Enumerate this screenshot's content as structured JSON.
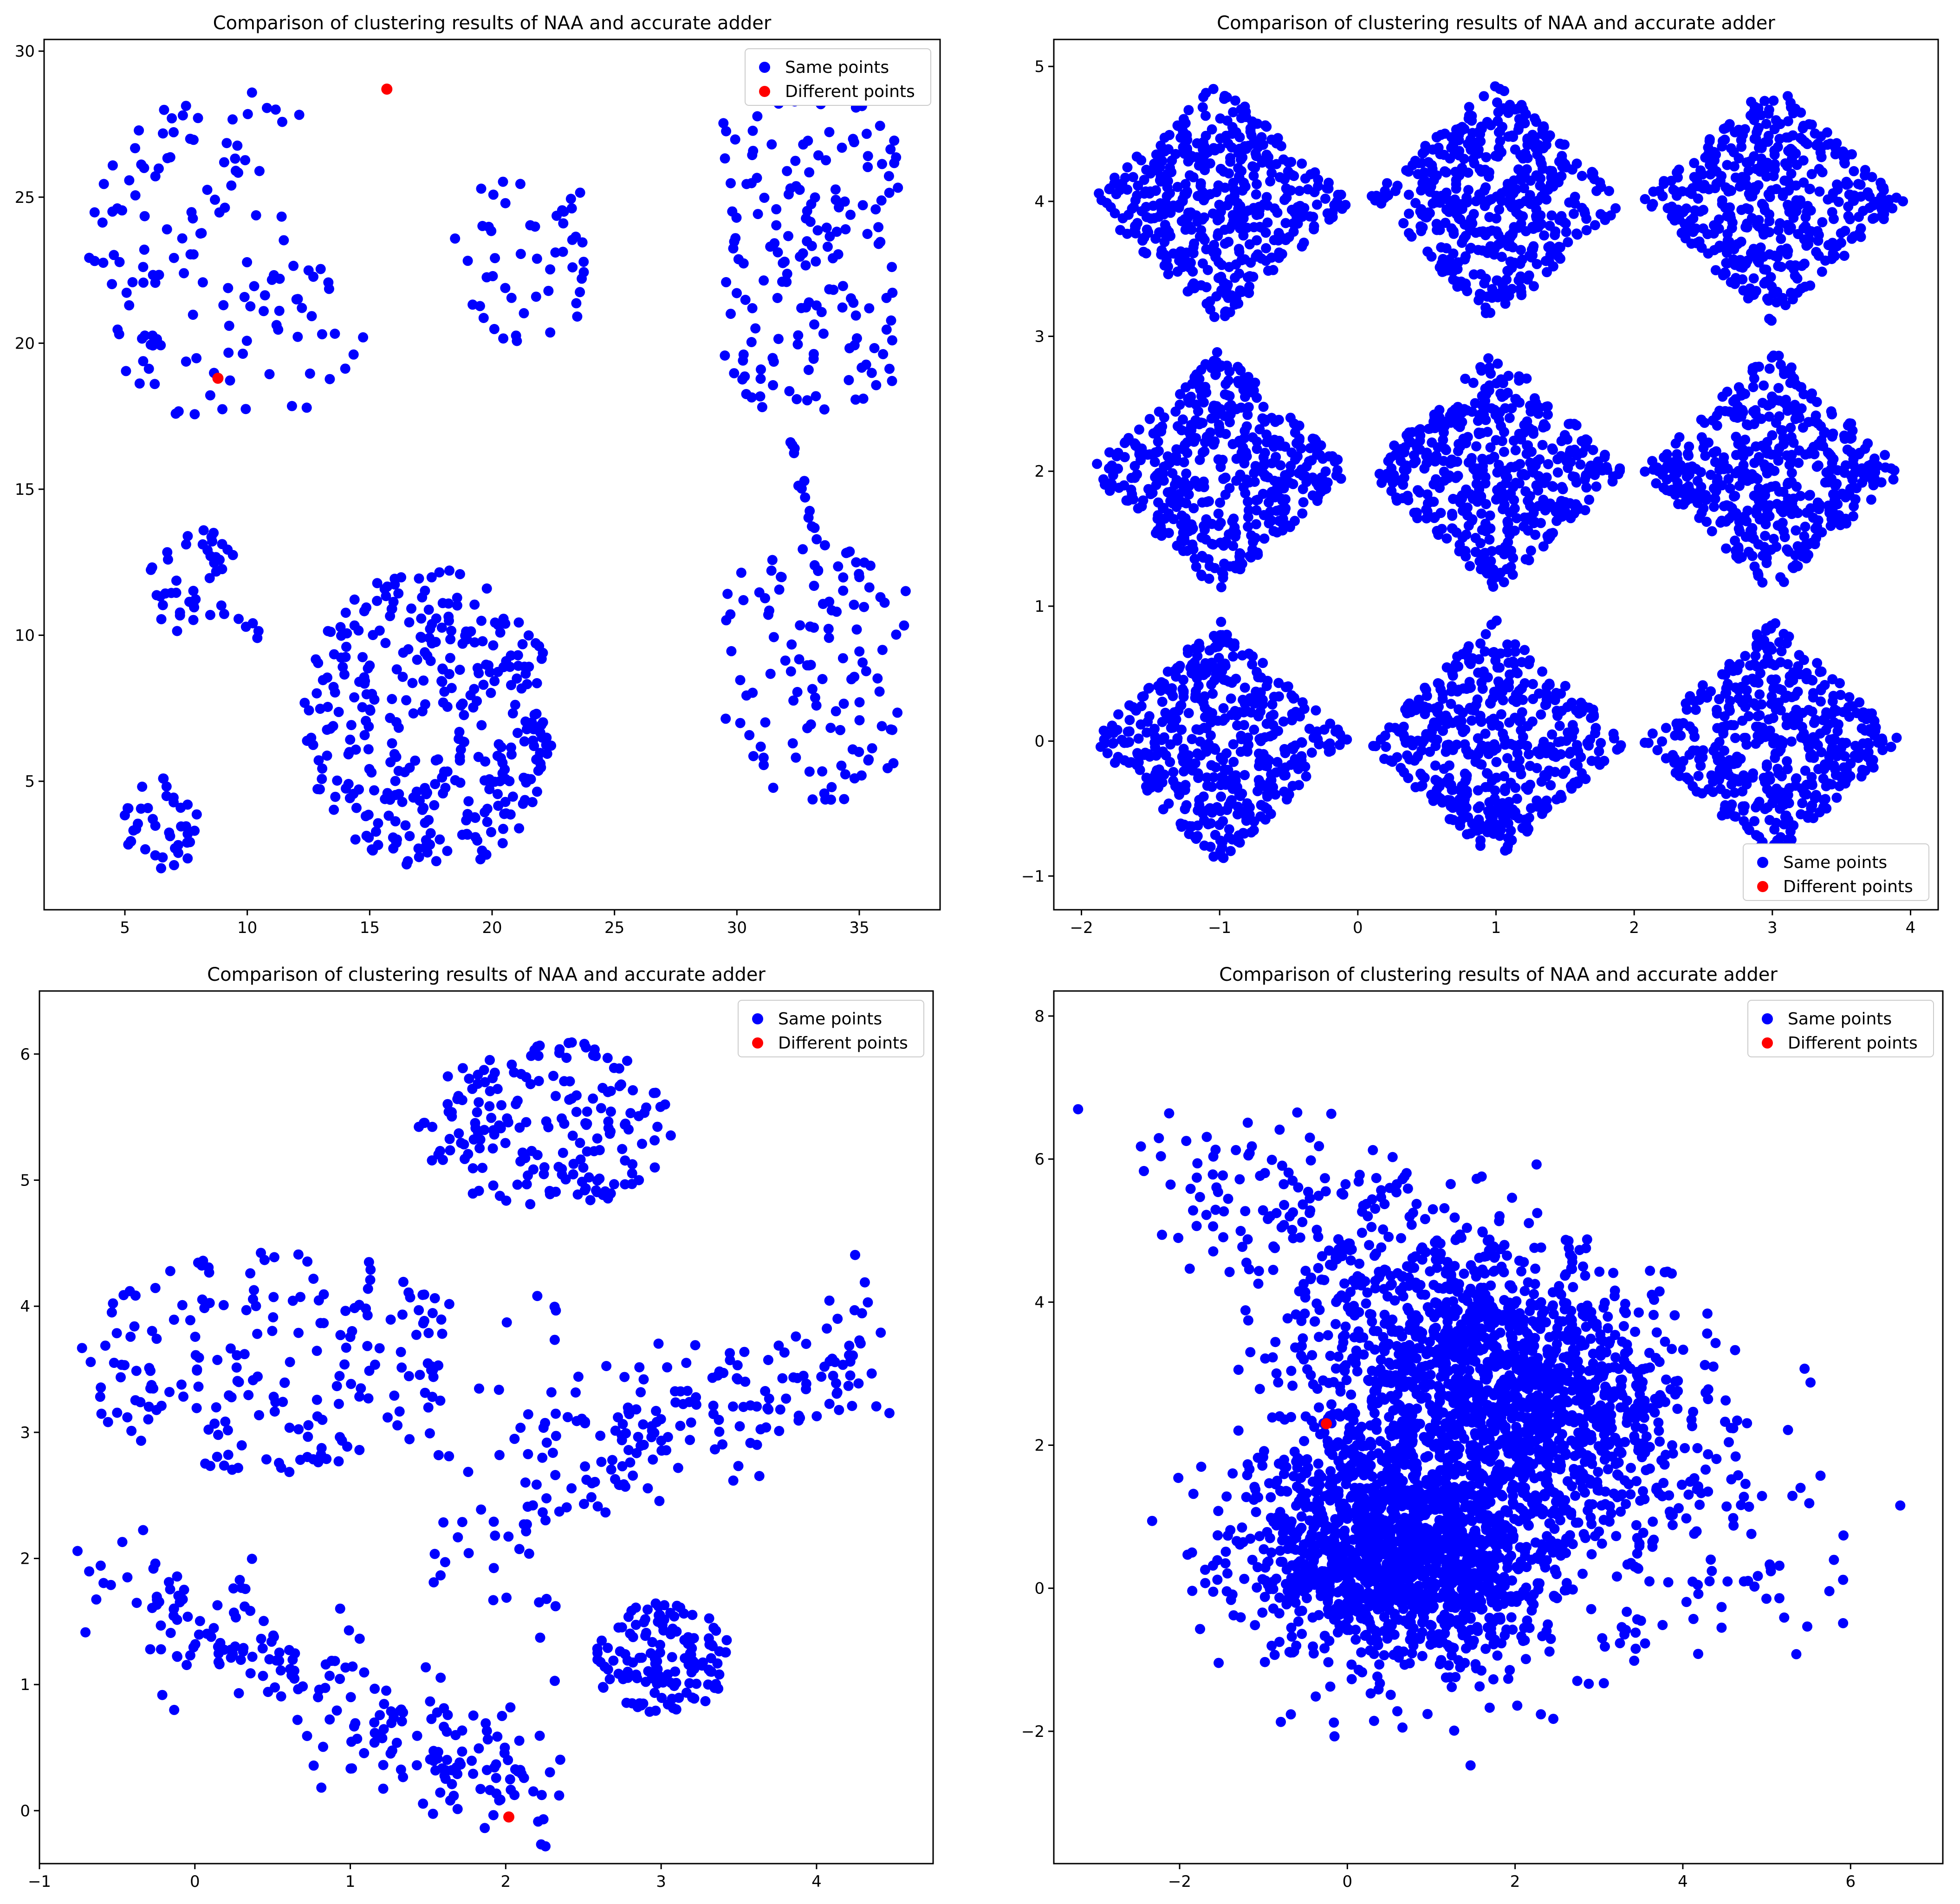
{
  "chart_data": [
    {
      "type": "scatter",
      "title": "Comparison of clustering results of NAA and accurate adder",
      "xlim": [
        1.7,
        38.3
      ],
      "ylim": [
        0.6,
        30.4
      ],
      "xticks": [
        5,
        10,
        15,
        20,
        25,
        30,
        35
      ],
      "xtick_labels": [
        "5",
        "10",
        "15",
        "20",
        "25",
        "30",
        "35"
      ],
      "yticks": [
        5,
        10,
        15,
        20,
        25,
        30
      ],
      "ytick_labels": [
        "5",
        "10",
        "15",
        "20",
        "25",
        "30"
      ],
      "legend_placement": "top-right",
      "colors": {
        "same": "#0000ff",
        "different": "#ff0000"
      },
      "series": [
        {
          "name": "Same points",
          "color": "#0000ff",
          "clusters": [
            {
              "shape": "disk",
              "center": [
                9.5,
                23
              ],
              "radius": 6,
              "n": 140,
              "xmin": 3.3,
              "xmax": 15.8,
              "ymin": 16.4,
              "ymax": 29.2,
              "exclude": {
                "center": [
                  17.2,
                  25.8
                ],
                "radius": 5.2
              }
            },
            {
              "shape": "disk",
              "center": [
                21.4,
                23
              ],
              "radius": 3.1,
              "n": 50
            },
            {
              "shape": "disk",
              "center": [
                33,
                23.2
              ],
              "radius": 5.8,
              "n": 170,
              "xmin": 29.4,
              "xmax": 36.6
            },
            {
              "shape": "disk",
              "center": [
                33.2,
                8.8
              ],
              "radius": 4.6,
              "n": 120,
              "xmin": 29.5,
              "xmax": 36.9
            },
            {
              "shape": "line",
              "from": [
                32.2,
                16.9
              ],
              "to": [
                33.2,
                13.1
              ],
              "n": 12,
              "spread": 0.15
            },
            {
              "shape": "disk",
              "center": [
                17.5,
                7.1
              ],
              "radius": 5.2,
              "n": 360,
              "xmin": 9.8,
              "xmax": 25,
              "ymin": 1.9,
              "ymax": 12.5
            },
            {
              "shape": "disk",
              "center": [
                7.8,
                11.8
              ],
              "radius": 1.9,
              "n": 42
            },
            {
              "shape": "line",
              "from": [
                9.5,
                11
              ],
              "to": [
                10.6,
                9.5
              ],
              "n": 5,
              "spread": 0.2
            },
            {
              "shape": "disk",
              "center": [
                6.5,
                3.5
              ],
              "radius": 1.6,
              "n": 40
            }
          ]
        },
        {
          "name": "Different points",
          "color": "#ff0000",
          "points": [
            [
              15.7,
              28.7
            ],
            [
              8.8,
              18.8
            ]
          ]
        }
      ]
    },
    {
      "type": "scatter",
      "title": "Comparison of clustering results of NAA and accurate adder",
      "xlim": [
        -2.2,
        4.2
      ],
      "ylim": [
        -1.25,
        5.2
      ],
      "xticks": [
        -2,
        -1,
        0,
        1,
        2,
        3,
        4
      ],
      "xtick_labels": [
        "−2",
        "−1",
        "0",
        "1",
        "2",
        "3",
        "4"
      ],
      "yticks": [
        -1,
        0,
        1,
        2,
        3,
        4,
        5
      ],
      "ytick_labels": [
        "−1",
        "0",
        "1",
        "2",
        "3",
        "4",
        "5"
      ],
      "legend_placement": "lower-right",
      "colors": {
        "same": "#0000ff",
        "different": "#ff0000"
      },
      "series": [
        {
          "name": "Same points",
          "color": "#0000ff",
          "clusters": [
            {
              "shape": "diamond",
              "center": [
                -1,
                4
              ],
              "half": [
                0.95,
                0.9
              ],
              "n": 460
            },
            {
              "shape": "diamond",
              "center": [
                1,
                4
              ],
              "half": [
                0.95,
                0.9
              ],
              "n": 460
            },
            {
              "shape": "diamond",
              "center": [
                3,
                4
              ],
              "half": [
                0.95,
                0.9
              ],
              "n": 460
            },
            {
              "shape": "diamond",
              "center": [
                -1,
                2
              ],
              "half": [
                0.95,
                0.9
              ],
              "n": 460
            },
            {
              "shape": "diamond",
              "center": [
                1,
                2
              ],
              "half": [
                0.95,
                0.9
              ],
              "n": 460
            },
            {
              "shape": "diamond",
              "center": [
                3,
                2
              ],
              "half": [
                0.95,
                0.9
              ],
              "n": 460
            },
            {
              "shape": "diamond",
              "center": [
                -1,
                0
              ],
              "half": [
                0.95,
                0.9
              ],
              "n": 460
            },
            {
              "shape": "diamond",
              "center": [
                1,
                0
              ],
              "half": [
                0.95,
                0.9
              ],
              "n": 460
            },
            {
              "shape": "diamond",
              "center": [
                3,
                0
              ],
              "half": [
                0.95,
                0.9
              ],
              "n": 460
            }
          ]
        },
        {
          "name": "Different points",
          "color": "#ff0000",
          "points": []
        }
      ]
    },
    {
      "type": "scatter",
      "title": "Comparison of clustering results of NAA and accurate adder",
      "xlim": [
        -1,
        4.75
      ],
      "ylim": [
        -0.42,
        6.5
      ],
      "xticks": [
        -1,
        0,
        1,
        2,
        3,
        4
      ],
      "xtick_labels": [
        "−1",
        "0",
        "1",
        "2",
        "3",
        "4"
      ],
      "yticks": [
        0,
        1,
        2,
        3,
        4,
        5,
        6
      ],
      "ytick_labels": [
        "0",
        "1",
        "2",
        "3",
        "4",
        "5",
        "6"
      ],
      "legend_placement": "top-right",
      "colors": {
        "same": "#0000ff",
        "different": "#ff0000"
      },
      "series": [
        {
          "name": "Same points",
          "color": "#0000ff",
          "clusters": [
            {
              "shape": "disk",
              "center": [
                2.25,
                5.45
              ],
              "radius": [
                0.82,
                0.7
              ],
              "n": 190
            },
            {
              "shape": "disk",
              "center": [
                0.55,
                3.55
              ],
              "radius": [
                1.35,
                0.9
              ],
              "n": 200,
              "xmin": -0.75,
              "xmax": 1.6,
              "ymin": 2.4,
              "ymax": 5.0
            },
            {
              "shape": "band",
              "from": [
                1.95,
                2.55
              ],
              "to": [
                4.45,
                3.7
              ],
              "n": 190,
              "spread": 0.3
            },
            {
              "shape": "band",
              "from": [
                -0.45,
                1.8
              ],
              "to": [
                2.25,
                0.1
              ],
              "n": 230,
              "spread": 0.25
            },
            {
              "shape": "disk",
              "center": [
                3.0,
                1.2
              ],
              "radius": [
                0.45,
                0.45
              ],
              "n": 140
            },
            {
              "shape": "rect",
              "xmin": 1.5,
              "xmax": 2.35,
              "ymin": 0.5,
              "ymax": 4.4,
              "n": 38
            }
          ]
        },
        {
          "name": "Different points",
          "color": "#ff0000",
          "points": [
            [
              2.02,
              -0.05
            ]
          ]
        }
      ]
    },
    {
      "type": "scatter",
      "title": "Comparison of clustering results of NAA and accurate adder",
      "xlim": [
        -3.5,
        7.1
      ],
      "ylim": [
        -3.85,
        8.35
      ],
      "xticks": [
        -2,
        0,
        2,
        4,
        6
      ],
      "xtick_labels": [
        "−2",
        "0",
        "2",
        "4",
        "6"
      ],
      "yticks": [
        -2,
        0,
        2,
        4,
        6,
        8
      ],
      "ytick_labels": [
        "−2",
        "0",
        "2",
        "4",
        "6",
        "8"
      ],
      "legend_placement": "top-right",
      "colors": {
        "same": "#0000ff",
        "different": "#ff0000"
      },
      "series": [
        {
          "name": "Same points",
          "color": "#0000ff",
          "clusters": [
            {
              "shape": "gauss",
              "center": [
                0.7,
                0.6
              ],
              "sigma": [
                0.95,
                0.9
              ],
              "n": 1700
            },
            {
              "shape": "gauss",
              "center": [
                1.8,
                3.0
              ],
              "sigma": [
                1.15,
                1.05
              ],
              "corr": -0.35,
              "n": 1500
            },
            {
              "shape": "gauss",
              "center": [
                -0.9,
                5.4
              ],
              "sigma": [
                0.8,
                0.7
              ],
              "corr": -0.2,
              "n": 90
            },
            {
              "shape": "gauss",
              "center": [
                4.3,
                0.6
              ],
              "sigma": [
                1.0,
                0.8
              ],
              "n": 90
            }
          ]
        },
        {
          "name": "Different points",
          "color": "#ff0000",
          "points": [
            [
              -0.25,
              2.3
            ]
          ]
        }
      ]
    }
  ]
}
